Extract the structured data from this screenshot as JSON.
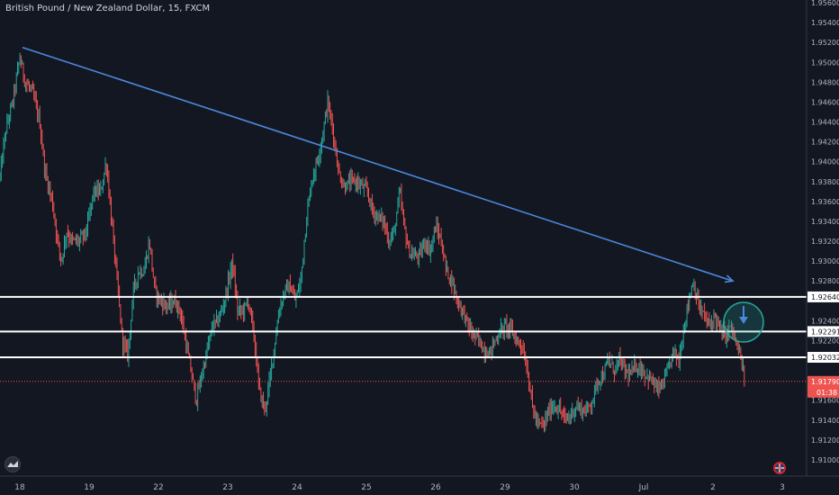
{
  "header": {
    "title": "British Pound / New Zealand Dollar, 15, FXCM"
  },
  "chart_data": {
    "type": "candlestick",
    "title": "British Pound / New Zealand Dollar, 15, FXCM",
    "y_ticks": [
      "1.95600",
      "1.95400",
      "1.95200",
      "1.95000",
      "1.94800",
      "1.94600",
      "1.94400",
      "1.94200",
      "1.94000",
      "1.93800",
      "1.93600",
      "1.93400",
      "1.93200",
      "1.93000",
      "1.92800",
      "1.92400",
      "1.92200",
      "1.91600",
      "1.91400",
      "1.91200",
      "1.91000"
    ],
    "x_ticks": [
      "18",
      "19",
      "22",
      "23",
      "24",
      "25",
      "26",
      "29",
      "30",
      "Jul",
      "2",
      "3"
    ],
    "ylim": [
      1.9085,
      1.9569
    ],
    "price_path": [
      [
        0,
        1.9385
      ],
      [
        6,
        1.943
      ],
      [
        14,
        1.946
      ],
      [
        22,
        1.9505
      ],
      [
        28,
        1.948
      ],
      [
        36,
        1.947
      ],
      [
        44,
        1.944
      ],
      [
        50,
        1.939
      ],
      [
        58,
        1.936
      ],
      [
        64,
        1.932
      ],
      [
        68,
        1.93
      ],
      [
        74,
        1.933
      ],
      [
        80,
        1.932
      ],
      [
        88,
        1.932
      ],
      [
        96,
        1.933
      ],
      [
        104,
        1.937
      ],
      [
        112,
        1.937
      ],
      [
        118,
        1.94
      ],
      [
        124,
        1.934
      ],
      [
        130,
        1.928
      ],
      [
        136,
        1.922
      ],
      [
        142,
        1.9205
      ],
      [
        148,
        1.927
      ],
      [
        154,
        1.929
      ],
      [
        160,
        1.929
      ],
      [
        166,
        1.932
      ],
      [
        172,
        1.927
      ],
      [
        178,
        1.926
      ],
      [
        186,
        1.9255
      ],
      [
        194,
        1.926
      ],
      [
        200,
        1.925
      ],
      [
        206,
        1.922
      ],
      [
        212,
        1.919
      ],
      [
        218,
        1.916
      ],
      [
        224,
        1.9185
      ],
      [
        230,
        1.921
      ],
      [
        236,
        1.9235
      ],
      [
        242,
        1.924
      ],
      [
        248,
        1.9255
      ],
      [
        254,
        1.928
      ],
      [
        258,
        1.93
      ],
      [
        264,
        1.925
      ],
      [
        270,
        1.925
      ],
      [
        276,
        1.926
      ],
      [
        282,
        1.9225
      ],
      [
        288,
        1.917
      ],
      [
        294,
        1.915
      ],
      [
        298,
        1.917
      ],
      [
        304,
        1.921
      ],
      [
        310,
        1.925
      ],
      [
        316,
        1.927
      ],
      [
        322,
        1.9275
      ],
      [
        328,
        1.926
      ],
      [
        334,
        1.928
      ],
      [
        340,
        1.934
      ],
      [
        346,
        1.938
      ],
      [
        352,
        1.94
      ],
      [
        358,
        1.9425
      ],
      [
        364,
        1.946
      ],
      [
        370,
        1.943
      ],
      [
        376,
        1.939
      ],
      [
        382,
        1.9375
      ],
      [
        390,
        1.938
      ],
      [
        396,
        1.938
      ],
      [
        402,
        1.9375
      ],
      [
        408,
        1.937
      ],
      [
        414,
        1.935
      ],
      [
        420,
        1.9345
      ],
      [
        426,
        1.934
      ],
      [
        432,
        1.932
      ],
      [
        438,
        1.933
      ],
      [
        444,
        1.937
      ],
      [
        448,
        1.934
      ],
      [
        454,
        1.931
      ],
      [
        460,
        1.9305
      ],
      [
        466,
        1.9305
      ],
      [
        472,
        1.932
      ],
      [
        478,
        1.931
      ],
      [
        484,
        1.9335
      ],
      [
        490,
        1.932
      ],
      [
        496,
        1.929
      ],
      [
        502,
        1.928
      ],
      [
        508,
        1.926
      ],
      [
        514,
        1.925
      ],
      [
        520,
        1.9235
      ],
      [
        526,
        1.9225
      ],
      [
        532,
        1.922
      ],
      [
        538,
        1.921
      ],
      [
        544,
        1.9208
      ],
      [
        550,
        1.922
      ],
      [
        556,
        1.923
      ],
      [
        562,
        1.9235
      ],
      [
        568,
        1.923
      ],
      [
        574,
        1.922
      ],
      [
        580,
        1.9215
      ],
      [
        586,
        1.919
      ],
      [
        592,
        1.915
      ],
      [
        598,
        1.9135
      ],
      [
        604,
        1.9135
      ],
      [
        610,
        1.915
      ],
      [
        616,
        1.9155
      ],
      [
        622,
        1.915
      ],
      [
        628,
        1.914
      ],
      [
        634,
        1.9145
      ],
      [
        640,
        1.9155
      ],
      [
        646,
        1.915
      ],
      [
        652,
        1.915
      ],
      [
        658,
        1.916
      ],
      [
        664,
        1.918
      ],
      [
        670,
        1.9185
      ],
      [
        676,
        1.92
      ],
      [
        682,
        1.919
      ],
      [
        688,
        1.92
      ],
      [
        694,
        1.919
      ],
      [
        700,
        1.9185
      ],
      [
        706,
        1.9195
      ],
      [
        712,
        1.9192
      ],
      [
        718,
        1.9185
      ],
      [
        724,
        1.918
      ],
      [
        730,
        1.917
      ],
      [
        736,
        1.9175
      ],
      [
        742,
        1.919
      ],
      [
        748,
        1.921
      ],
      [
        754,
        1.92
      ],
      [
        760,
        1.9235
      ],
      [
        766,
        1.9265
      ],
      [
        770,
        1.928
      ],
      [
        776,
        1.9255
      ],
      [
        782,
        1.9245
      ],
      [
        788,
        1.9235
      ],
      [
        794,
        1.9245
      ],
      [
        800,
        1.923
      ],
      [
        806,
        1.9225
      ],
      [
        812,
        1.9235
      ],
      [
        818,
        1.9215
      ],
      [
        822,
        1.9205
      ],
      [
        828,
        1.9179
      ]
    ],
    "trendline": {
      "from": [
        "18",
        1.9515
      ],
      "to": [
        "2",
        1.928
      ],
      "color": "#4a89dc"
    },
    "levels": [
      {
        "value": 1.9264,
        "label": "1.92640"
      },
      {
        "value": 1.92291,
        "label": "1.92291"
      },
      {
        "value": 1.92032,
        "label": "1.92032"
      }
    ],
    "last_price": {
      "value": 1.9179,
      "label": "1.91790",
      "countdown": "01:38"
    },
    "colors": {
      "up": "#26a69a",
      "down": "#ef5350",
      "background": "#131722",
      "trendline": "#4a89dc",
      "marker": "#26a69a",
      "last_price": "#ef5350"
    }
  }
}
